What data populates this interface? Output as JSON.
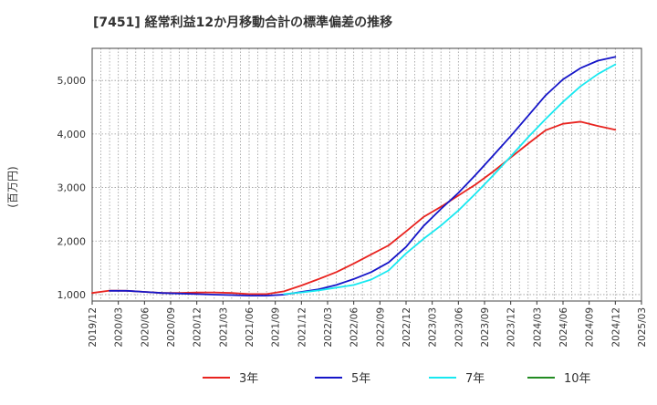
{
  "chart_data": {
    "type": "line",
    "title": "[7451]  経常利益12か月移動合計の標準偏差の推移",
    "ylabel": "(百万円)",
    "xlabel": "",
    "xlim": [
      "2019-12",
      "2025-03"
    ],
    "ylim": [
      880,
      5600
    ],
    "yticks": [
      1000,
      2000,
      3000,
      4000,
      5000
    ],
    "ytick_labels": [
      "1,000",
      "2,000",
      "3,000",
      "4,000",
      "5,000"
    ],
    "xtick_labels": [
      "2019/12",
      "2020/03",
      "2020/06",
      "2020/09",
      "2020/12",
      "2021/03",
      "2021/06",
      "2021/09",
      "2021/12",
      "2022/03",
      "2022/06",
      "2022/09",
      "2022/12",
      "2023/03",
      "2023/06",
      "2023/09",
      "2023/12",
      "2024/03",
      "2024/06",
      "2024/09",
      "2024/12",
      "2025/03"
    ],
    "grid": true,
    "legend_position": "bottom",
    "series": [
      {
        "name": "3年",
        "color": "#e8231f",
        "x": [
          "2019-12",
          "2020-02",
          "2020-04",
          "2020-06",
          "2020-08",
          "2020-10",
          "2020-12",
          "2021-02",
          "2021-04",
          "2021-06",
          "2021-08",
          "2021-10",
          "2021-12",
          "2022-02",
          "2022-04",
          "2022-06",
          "2022-08",
          "2022-10",
          "2022-12",
          "2023-02",
          "2023-04",
          "2023-06",
          "2023-08",
          "2023-10",
          "2023-12",
          "2024-02",
          "2024-04",
          "2024-06",
          "2024-08",
          "2024-10",
          "2024-12"
        ],
        "values": [
          1030,
          1075,
          1070,
          1050,
          1030,
          1030,
          1040,
          1040,
          1030,
          1010,
          1010,
          1060,
          1170,
          1290,
          1420,
          1580,
          1750,
          1920,
          2180,
          2450,
          2640,
          2850,
          3060,
          3300,
          3560,
          3820,
          4070,
          4190,
          4230,
          4150,
          4080
        ]
      },
      {
        "name": "5年",
        "color": "#1515c8",
        "x": [
          "2020-02",
          "2020-04",
          "2020-06",
          "2020-08",
          "2020-10",
          "2020-12",
          "2021-02",
          "2021-04",
          "2021-06",
          "2021-08",
          "2021-10",
          "2021-12",
          "2022-02",
          "2022-04",
          "2022-06",
          "2022-08",
          "2022-10",
          "2022-12",
          "2023-02",
          "2023-04",
          "2023-06",
          "2023-08",
          "2023-10",
          "2023-12",
          "2024-02",
          "2024-04",
          "2024-06",
          "2024-08",
          "2024-10",
          "2024-12"
        ],
        "values": [
          1070,
          1070,
          1050,
          1030,
          1020,
          1010,
          1000,
          990,
          980,
          980,
          1000,
          1050,
          1100,
          1180,
          1290,
          1420,
          1600,
          1890,
          2280,
          2600,
          2900,
          3240,
          3600,
          3960,
          4340,
          4720,
          5020,
          5230,
          5370,
          5440
        ]
      },
      {
        "name": "7年",
        "color": "#18e8f0",
        "x": [
          "2021-10",
          "2021-12",
          "2022-02",
          "2022-04",
          "2022-06",
          "2022-08",
          "2022-10",
          "2022-12",
          "2023-02",
          "2023-04",
          "2023-06",
          "2023-08",
          "2023-10",
          "2023-12",
          "2024-02",
          "2024-04",
          "2024-06",
          "2024-08",
          "2024-10",
          "2024-12"
        ],
        "values": [
          1010,
          1040,
          1080,
          1130,
          1180,
          1280,
          1450,
          1770,
          2040,
          2290,
          2570,
          2890,
          3230,
          3580,
          3940,
          4280,
          4600,
          4890,
          5120,
          5300
        ]
      },
      {
        "name": "10年",
        "color": "#228b22",
        "x": [],
        "values": []
      }
    ]
  }
}
